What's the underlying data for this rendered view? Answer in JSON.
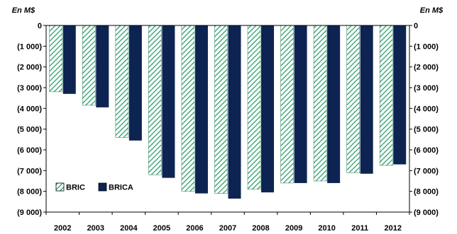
{
  "chart_data": {
    "type": "bar",
    "unit_left": "En M$",
    "unit_right": "En M$",
    "categories": [
      "2002",
      "2003",
      "2004",
      "2005",
      "2006",
      "2007",
      "2008",
      "2009",
      "2010",
      "2011",
      "2012"
    ],
    "series": [
      {
        "name": "BRIC",
        "values": [
          -3200,
          -3850,
          -5400,
          -7200,
          -8000,
          -8100,
          -7900,
          -7600,
          -7500,
          -7100,
          -6750
        ],
        "color": "#2e9e6b",
        "pattern": "diagonal-hatch"
      },
      {
        "name": "BRICA",
        "values": [
          -3300,
          -3950,
          -5550,
          -7350,
          -8100,
          -8350,
          -8050,
          -7600,
          -7600,
          -7150,
          -6700
        ],
        "color": "#0d2452"
      }
    ],
    "yticks": [
      0,
      -1000,
      -2000,
      -3000,
      -4000,
      -5000,
      -6000,
      -7000,
      -8000,
      -9000
    ],
    "ytick_labels": [
      "0",
      "(1 000)",
      "(2 000)",
      "(3 000)",
      "(4 000)",
      "(5 000)",
      "(6 000)",
      "(7 000)",
      "(8 000)",
      "(9 000)"
    ],
    "ylim": [
      -9000,
      0
    ],
    "xlabel": "",
    "ylabel": "",
    "title": "",
    "grid": false,
    "legend_position": "bottom-left"
  }
}
